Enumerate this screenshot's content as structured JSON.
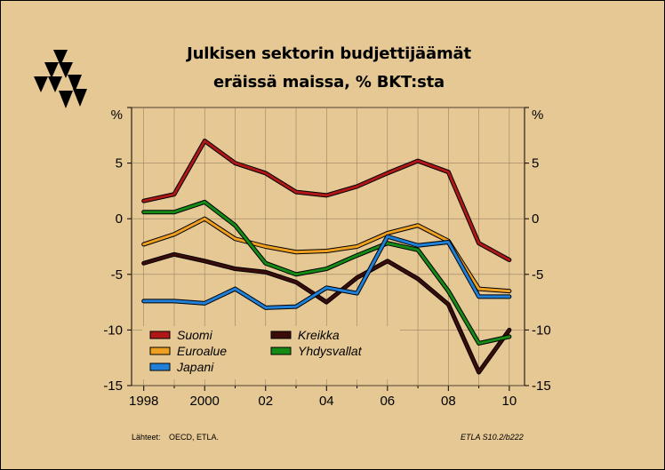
{
  "title_line1": "Julkisen sektorin budjettijäämät",
  "title_line2": "eräissä maissa, % BKT:sta",
  "footer": {
    "source_label": "Lähteet:",
    "source_text": "OECD, ETLA.",
    "code": "ETLA S10.2/b222"
  },
  "colors": {
    "background": "#e6c894",
    "Suomi": "#b01818",
    "Euroalue": "#f0a020",
    "Japani": "#2080d8",
    "Kreikka": "#3a0c0c",
    "Yhdysvallat": "#158a15"
  },
  "chart_data": {
    "type": "line",
    "title": "Julkisen sektorin budjettijäämät eräissä maissa, % BKT:sta",
    "xlabel": "",
    "ylabel": "%",
    "x": [
      1998,
      1999,
      2000,
      2001,
      2002,
      2003,
      2004,
      2005,
      2006,
      2007,
      2008,
      2009,
      2010
    ],
    "x_ticks": [
      1998,
      2000,
      2002,
      2004,
      2006,
      2008,
      2010
    ],
    "x_tick_labels": [
      "1998",
      "2000",
      "02",
      "04",
      "06",
      "08",
      "10"
    ],
    "y_ticks": [
      5,
      0,
      -5,
      -10,
      -15
    ],
    "y_tick_labels": [
      "5",
      "0",
      "-5",
      "-10",
      "-15"
    ],
    "y_unit_label": "%",
    "xlim": [
      1997.6,
      2010.5
    ],
    "ylim": [
      -15,
      10
    ],
    "grid": true,
    "legend": "bottom-left",
    "series": [
      {
        "name": "Suomi",
        "values": [
          1.6,
          2.2,
          7.0,
          5.0,
          4.1,
          2.4,
          2.1,
          2.9,
          4.1,
          5.2,
          4.2,
          -2.2,
          -3.7
        ]
      },
      {
        "name": "Kreikka",
        "values": [
          -4.0,
          -3.2,
          -3.8,
          -4.5,
          -4.8,
          -5.7,
          -7.5,
          -5.3,
          -3.8,
          -5.4,
          -7.7,
          -13.8,
          -10.0
        ]
      },
      {
        "name": "Euroalue",
        "values": [
          -2.3,
          -1.4,
          0.0,
          -1.8,
          -2.5,
          -3.0,
          -2.9,
          -2.5,
          -1.3,
          -0.6,
          -2.0,
          -6.3,
          -6.5
        ]
      },
      {
        "name": "Yhdysvallat",
        "values": [
          0.6,
          0.6,
          1.5,
          -0.6,
          -4.0,
          -5.0,
          -4.5,
          -3.3,
          -2.2,
          -2.8,
          -6.5,
          -11.2,
          -10.6
        ]
      },
      {
        "name": "Japani",
        "values": [
          -7.4,
          -7.4,
          -7.6,
          -6.3,
          -8.0,
          -7.9,
          -6.2,
          -6.7,
          -1.6,
          -2.4,
          -2.1,
          -7.0,
          -7.0
        ]
      }
    ]
  }
}
